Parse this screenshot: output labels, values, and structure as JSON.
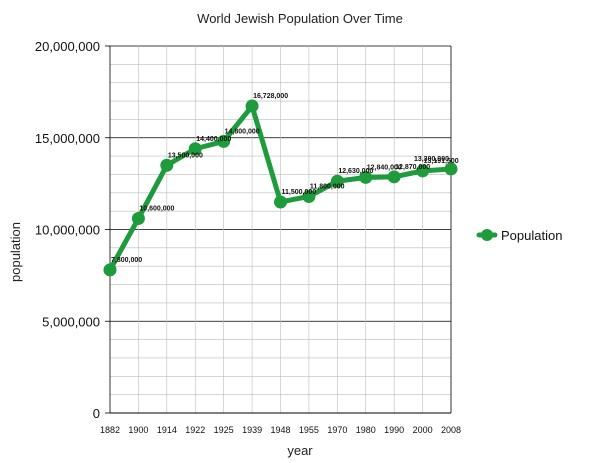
{
  "chart_data": {
    "type": "line",
    "title": "World Jewish Population Over Time",
    "xlabel": "year",
    "ylabel": "population",
    "categories": [
      "1882",
      "1900",
      "1914",
      "1922",
      "1925",
      "1939",
      "1948",
      "1955",
      "1970",
      "1980",
      "1990",
      "2000",
      "2008"
    ],
    "series": [
      {
        "name": "Population",
        "values": [
          7800000,
          10600000,
          13500000,
          14400000,
          14800000,
          16728000,
          11500000,
          11800000,
          12630000,
          12840000,
          12870000,
          13191500,
          13300000
        ],
        "labels": [
          "7,800,000",
          "10,600,000",
          "13,500,000",
          "14,400,000",
          "14,800,000",
          "16,728,000",
          "11,500,000",
          "11,800,000",
          "12,630,000",
          "12,840,000",
          "12,870,000",
          "13,191,500",
          "13,300,000"
        ]
      }
    ],
    "ylim": [
      0,
      20000000
    ],
    "yticks": [
      0,
      5000000,
      10000000,
      15000000,
      20000000
    ],
    "ytick_labels": [
      "0",
      "5,000,000",
      "10,000,000",
      "15,000,000",
      "20,000,000"
    ],
    "grid": true,
    "legend_position": "right",
    "color": "#1e9b3b"
  }
}
